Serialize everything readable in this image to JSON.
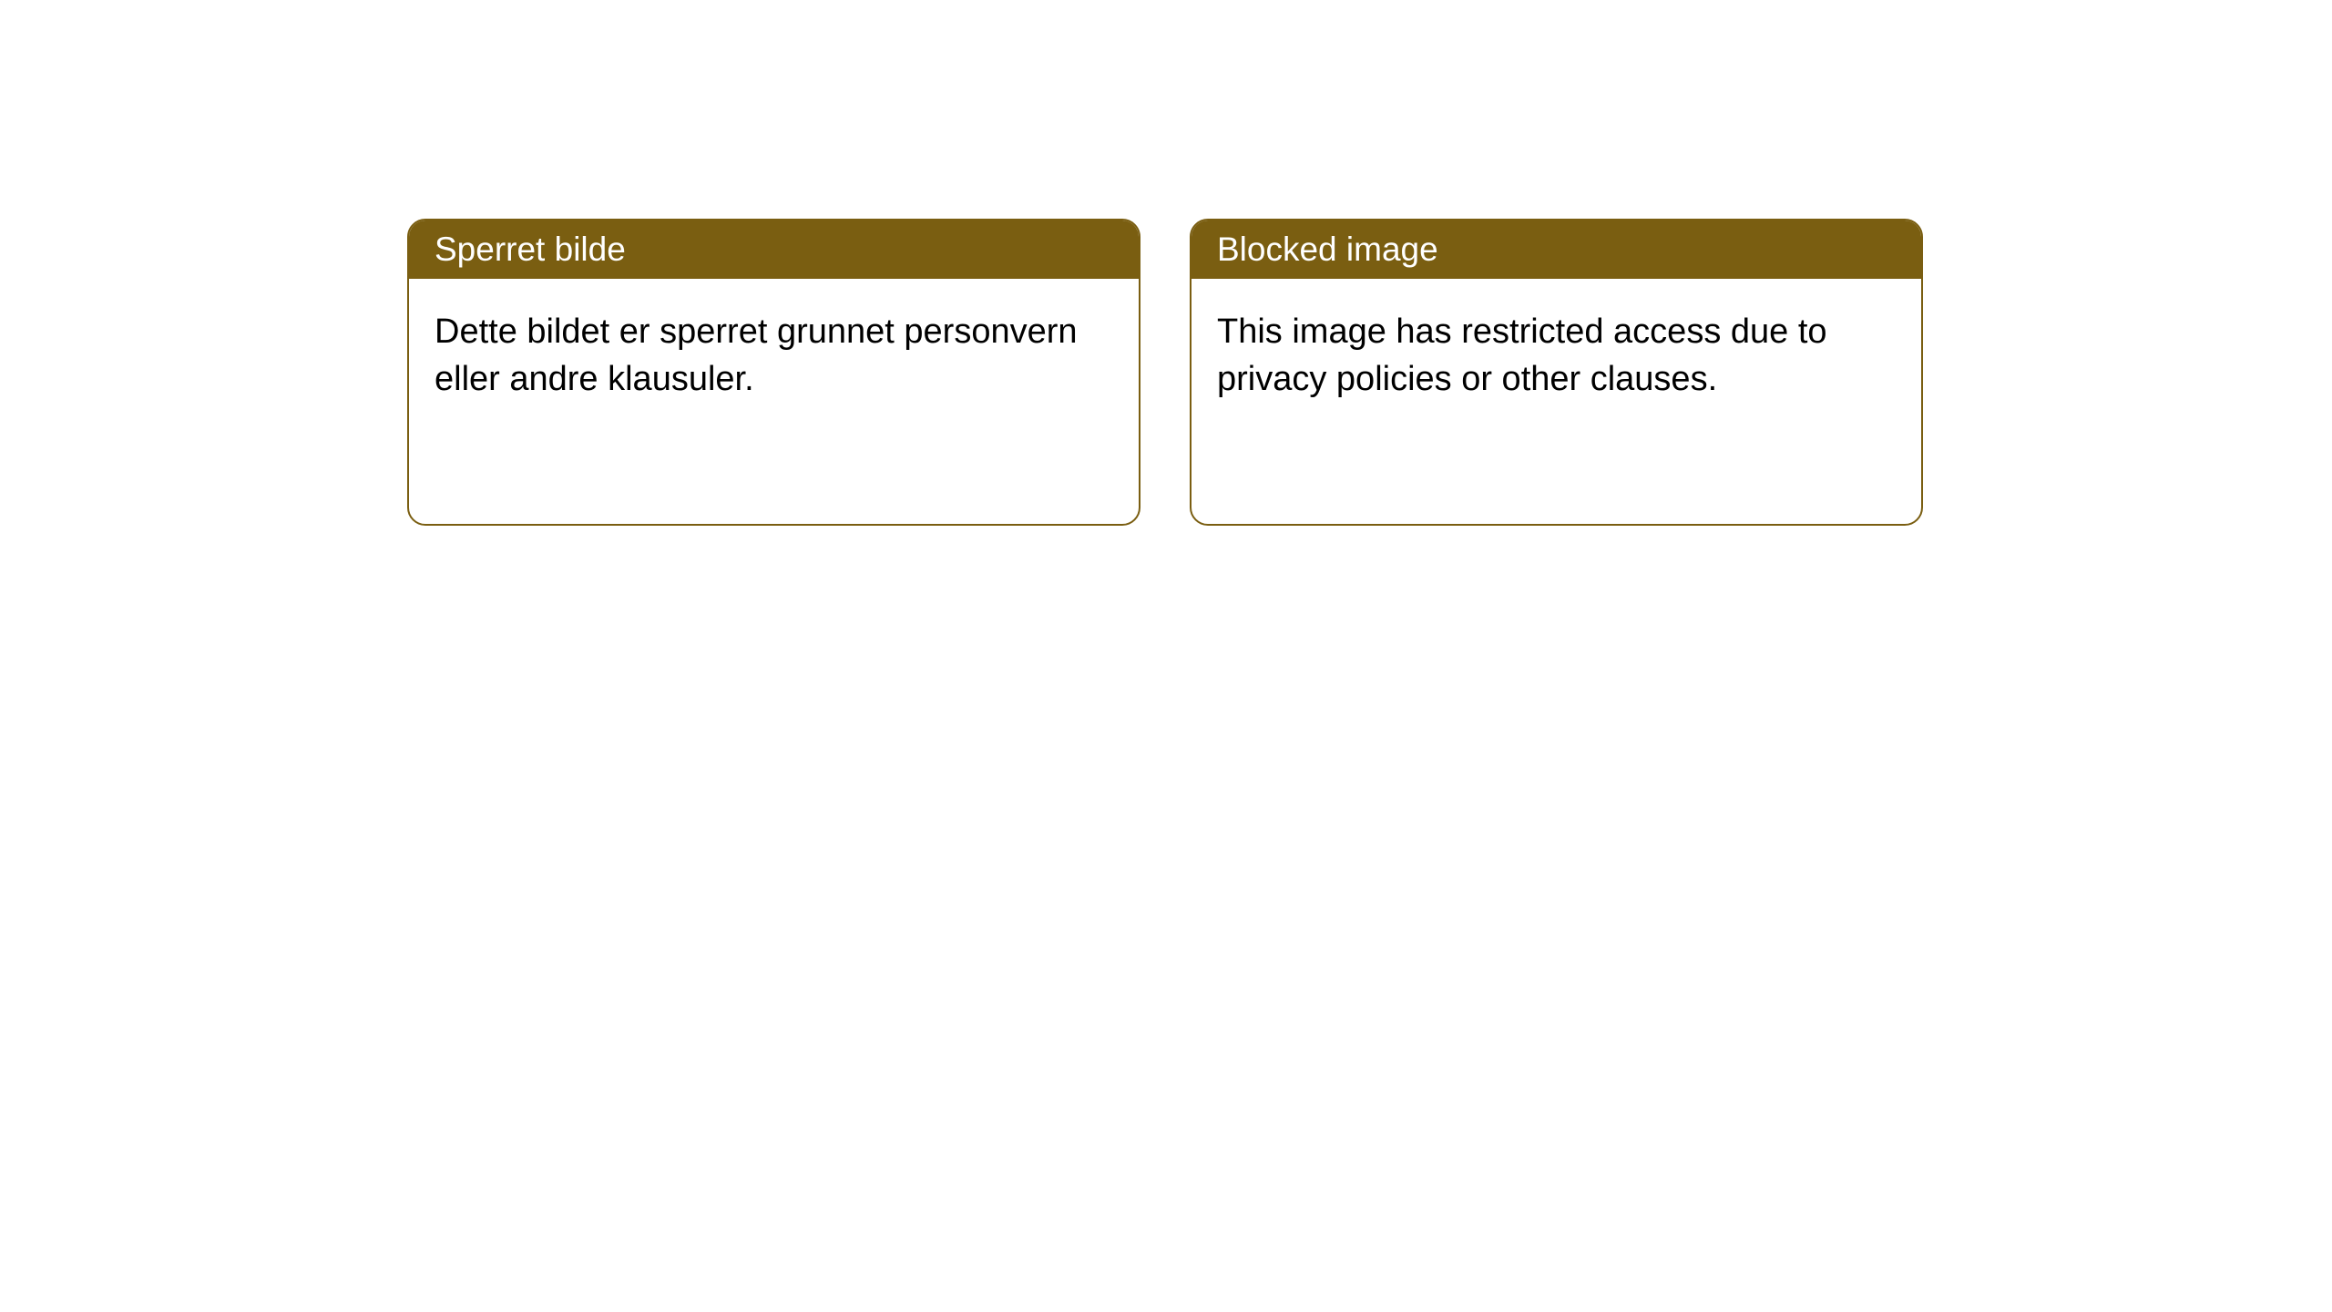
{
  "cards": [
    {
      "header": "Sperret bilde",
      "body": "Dette bildet er sperret grunnet personvern eller andre klausuler."
    },
    {
      "header": "Blocked image",
      "body": "This image has restricted access due to privacy policies or other clauses."
    }
  ],
  "styling": {
    "card_border_color": "#7a5e11",
    "card_header_background": "#7a5e11",
    "card_header_text_color": "#ffffff",
    "card_body_text_color": "#000000",
    "page_background": "#ffffff",
    "card_border_radius": 20,
    "header_font_size": 37,
    "body_font_size": 38
  }
}
